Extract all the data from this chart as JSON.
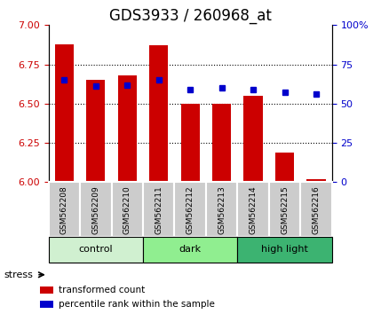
{
  "title": "GDS3933 / 260968_at",
  "samples": [
    "GSM562208",
    "GSM562209",
    "GSM562210",
    "GSM562211",
    "GSM562212",
    "GSM562213",
    "GSM562214",
    "GSM562215",
    "GSM562216"
  ],
  "bar_values": [
    6.88,
    6.65,
    6.68,
    6.87,
    6.5,
    6.5,
    6.55,
    6.19,
    6.02
  ],
  "bar_base": 6.0,
  "percentile_values": [
    65,
    61,
    62,
    65,
    59,
    60,
    59,
    57,
    56
  ],
  "bar_color": "#cc0000",
  "dot_color": "#0000cc",
  "ylim_left": [
    6.0,
    7.0
  ],
  "ylim_right": [
    0,
    100
  ],
  "yticks_left": [
    6.0,
    6.25,
    6.5,
    6.75,
    7.0
  ],
  "yticks_right": [
    0,
    25,
    50,
    75,
    100
  ],
  "groups": [
    {
      "label": "control",
      "start": 0,
      "end": 3,
      "color": "#d0f0d0"
    },
    {
      "label": "dark",
      "start": 3,
      "end": 6,
      "color": "#90ee90"
    },
    {
      "label": "high light",
      "start": 6,
      "end": 9,
      "color": "#3cb371"
    }
  ],
  "stress_label": "stress",
  "legend_items": [
    {
      "label": "transformed count",
      "color": "#cc0000"
    },
    {
      "label": "percentile rank within the sample",
      "color": "#0000cc"
    }
  ],
  "bar_width": 0.6,
  "tick_color_left": "#cc0000",
  "tick_color_right": "#0000cc",
  "title_fontsize": 12,
  "legend_fontsize": 7.5
}
